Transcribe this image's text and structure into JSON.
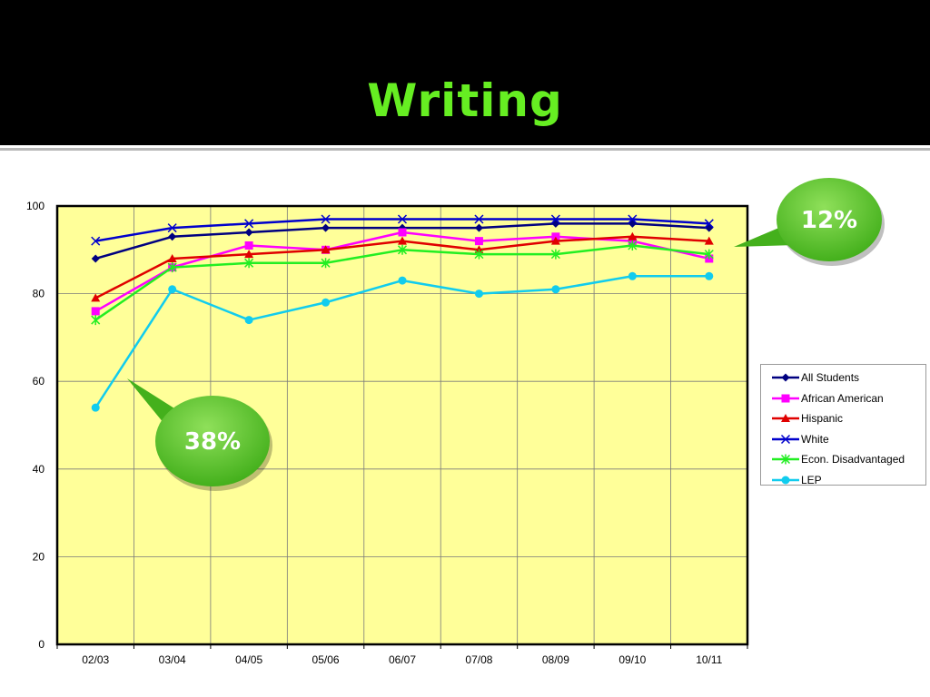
{
  "slide": {
    "title": "Writing"
  },
  "callouts": [
    {
      "text": "12%",
      "color": "#44b01c"
    },
    {
      "text": "38%",
      "color": "#44b01c"
    }
  ],
  "chart_data": {
    "type": "line",
    "categories": [
      "02/03",
      "03/04",
      "04/05",
      "05/06",
      "06/07",
      "07/08",
      "08/09",
      "09/10",
      "10/11"
    ],
    "ylim": [
      0,
      100
    ],
    "yticks": [
      0,
      20,
      40,
      60,
      80,
      100
    ],
    "grid": true,
    "legend_position": "right",
    "plot_background": "#ffff99",
    "series": [
      {
        "name": "All Students",
        "color": "#000080",
        "marker": "diamond",
        "values": [
          88,
          93,
          94,
          95,
          95,
          95,
          96,
          96,
          95
        ]
      },
      {
        "name": "African American",
        "color": "#ff00ff",
        "marker": "square",
        "values": [
          76,
          86,
          91,
          90,
          94,
          92,
          93,
          92,
          88
        ]
      },
      {
        "name": "Hispanic",
        "color": "#e00000",
        "marker": "triangle",
        "values": [
          79,
          88,
          89,
          90,
          92,
          90,
          92,
          93,
          92
        ]
      },
      {
        "name": "White",
        "color": "#0000cc",
        "marker": "x",
        "values": [
          92,
          95,
          96,
          97,
          97,
          97,
          97,
          97,
          96
        ]
      },
      {
        "name": "Econ. Disadvantaged",
        "color": "#22ee22",
        "marker": "star",
        "values": [
          74,
          86,
          87,
          87,
          90,
          89,
          89,
          91,
          89
        ]
      },
      {
        "name": "LEP",
        "color": "#11ccee",
        "marker": "circle",
        "values": [
          54,
          81,
          74,
          78,
          83,
          80,
          81,
          84,
          84
        ]
      }
    ]
  }
}
